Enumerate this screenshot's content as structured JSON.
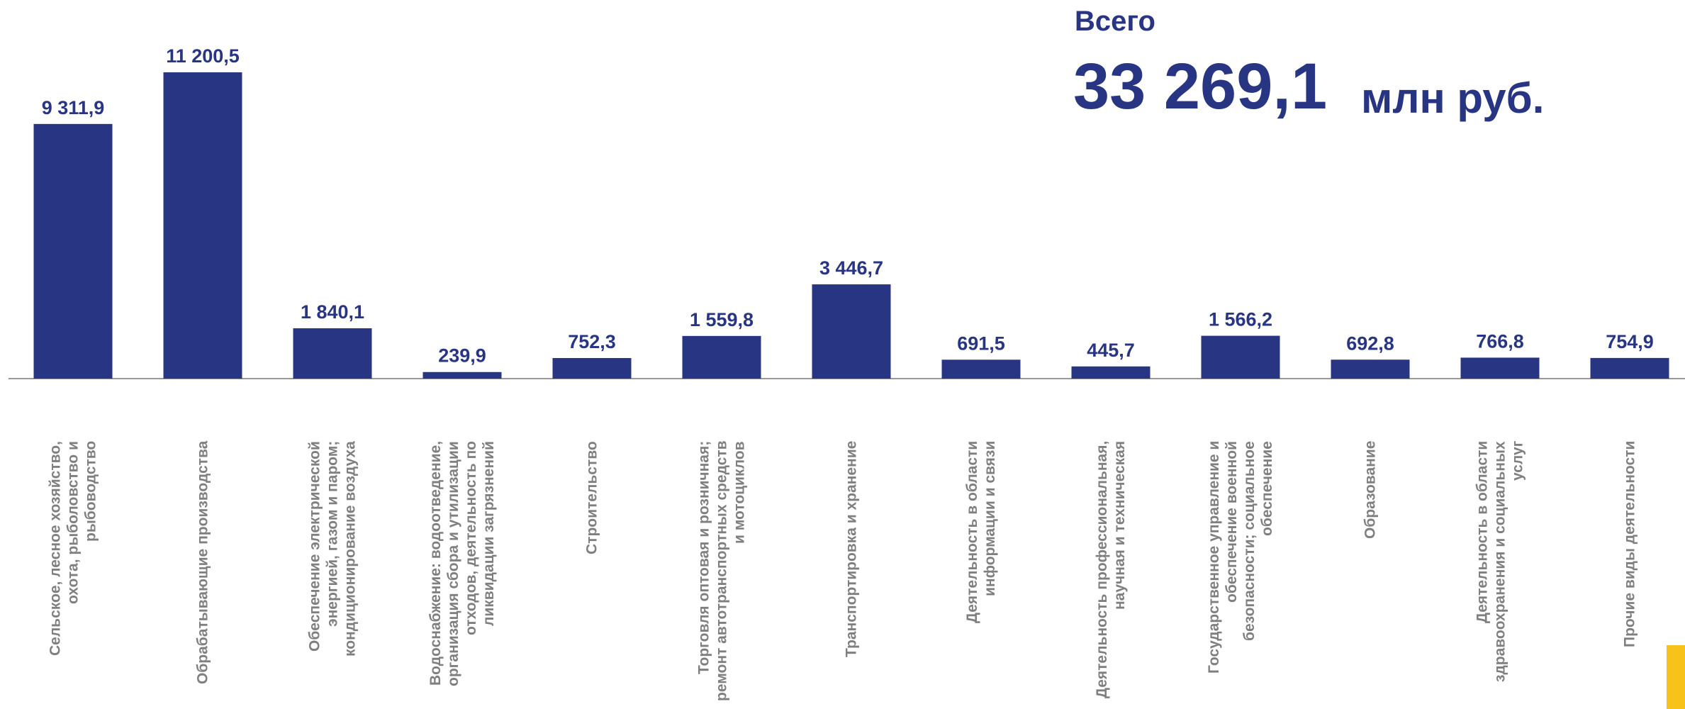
{
  "chart_data": {
    "type": "bar",
    "total_caption": "Всего",
    "total_value": "33 269,1",
    "total_unit": "млн руб.",
    "color": "#283583",
    "categories": [
      "Сельское, лесное хозяйство, охота, рыболовство и рыбоводство",
      "Обрабатывающие производства",
      "Обеспечение электрической энергией, газом и паром; кондиционирование воздуха",
      "Водоснабжение: водоотведение, организация сбора и утилизации отходов, деятельность по ликвидации загрязнений",
      "Строительство",
      "Торговля оптовая и розничная; ремонт автотранспортных средств и мотоциклов",
      "Транспортировка и хранение",
      "Деятельность в области информации и связи",
      "Деятельность профессиональная, научная и техническая",
      "Государственное управление и обеспечение военной безопасности; социальное обеспечение",
      "Образование",
      "Деятельность в области здравоохранения и социальных услуг",
      "Прочие виды деятельности"
    ],
    "values": [
      9311.9,
      11200.5,
      1840.1,
      239.9,
      752.3,
      1559.8,
      3446.7,
      691.5,
      445.7,
      1566.2,
      692.8,
      766.8,
      754.9
    ],
    "value_labels": [
      "9 311,9",
      "11 200,5",
      "1 840,1",
      "239,9",
      "752,3",
      "1 559,8",
      "3 446,7",
      "691,5",
      "445,7",
      "1 566,2",
      "692,8",
      "766,8",
      "754,9"
    ]
  }
}
